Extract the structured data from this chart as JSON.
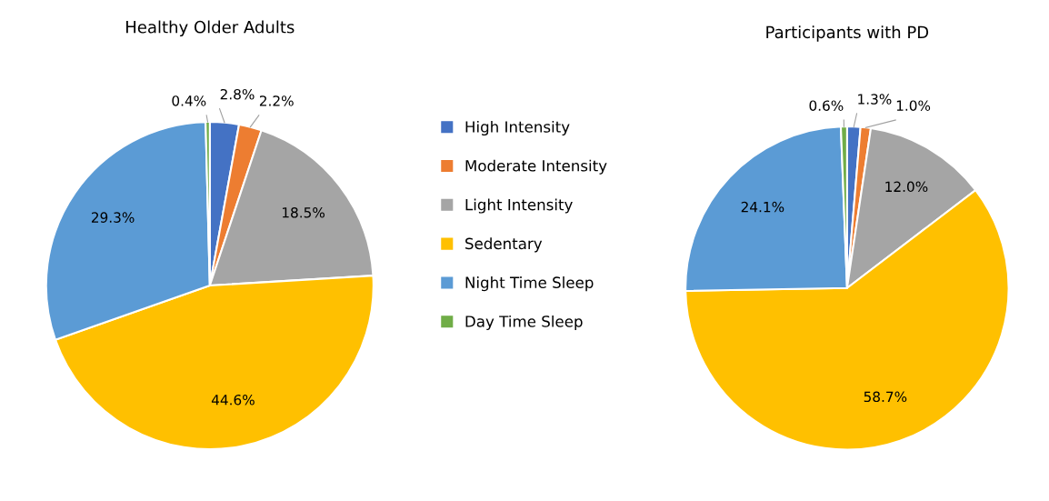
{
  "chart_data": [
    {
      "type": "pie",
      "title": "Healthy Older Adults",
      "categories": [
        "High Intensity",
        "Moderate Intensity",
        "Light Intensity",
        "Sedentary",
        "Night Time Sleep",
        "Day Time Sleep"
      ],
      "values": [
        2.8,
        2.2,
        18.5,
        44.6,
        29.3,
        0.4
      ],
      "value_labels": [
        "2.8%",
        "2.2%",
        "18.5%",
        "44.6%",
        "29.3%",
        "0.4%"
      ],
      "colors": [
        "#4472c4",
        "#ed7d31",
        "#a5a5a5",
        "#ffc000",
        "#5b9bd5",
        "#70ad47"
      ],
      "legend": "right"
    },
    {
      "type": "pie",
      "title": "Participants with PD",
      "categories": [
        null,
        null,
        null,
        null,
        null,
        null
      ],
      "values": [
        1.3,
        1.0,
        12.0,
        58.7,
        24.1,
        0.6
      ],
      "value_labels": [
        "1.3%",
        "1.0%",
        "12.0%",
        "58.7%",
        "24.1%",
        "0.6%"
      ],
      "colors": [
        "#4472c4",
        "#ed7d31",
        "#a5a5a5",
        "#ffc000",
        "#5b9bd5",
        "#70ad47"
      ]
    }
  ]
}
